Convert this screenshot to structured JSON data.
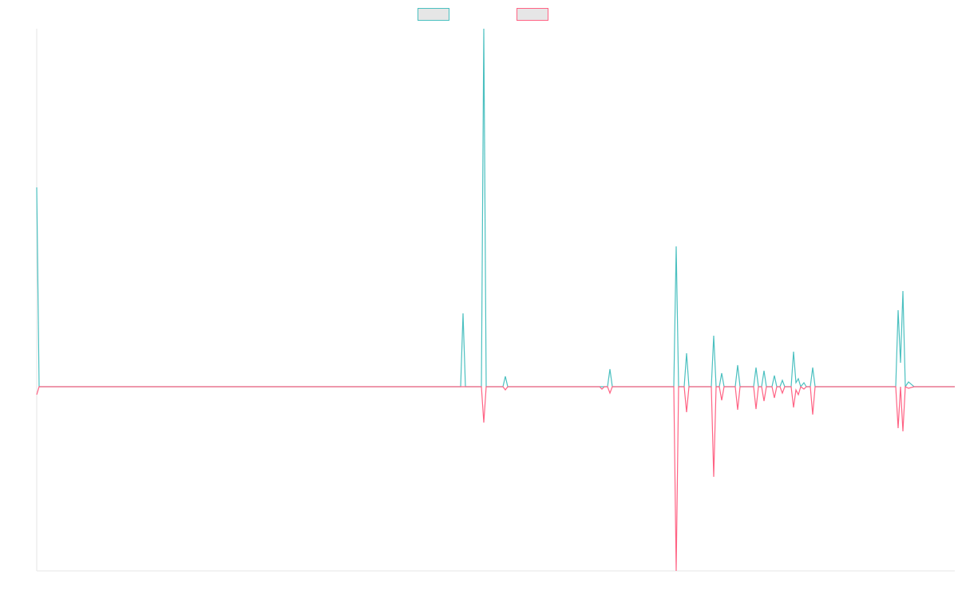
{
  "chart_data": {
    "type": "line",
    "legend": "top",
    "grid": false,
    "xlim": [
      0,
      1150
    ],
    "ylim": [
      -231,
      449
    ],
    "series": [
      {
        "color": "#4bc0c0",
        "x": [
          0,
          3,
          531,
          534,
          537,
          557,
          560,
          563,
          584,
          587,
          590,
          715,
          718,
          721,
          798,
          801,
          804,
          811,
          814,
          817,
          845,
          848,
          851,
          855,
          858,
          861,
          875,
          878,
          881,
          898,
          901,
          904,
          908,
          911,
          914,
          921,
          924,
          927,
          931,
          934,
          937,
          945,
          948,
          951,
          954,
          957,
          961,
          964,
          969,
          972,
          975,
          1076,
          1079,
          1082,
          1085,
          1088,
          1092,
          1099,
          1150
        ],
        "values": [
          250,
          0,
          0,
          92,
          0,
          0,
          449,
          0,
          0,
          13,
          0,
          0,
          22,
          0,
          0,
          176,
          0,
          0,
          42,
          0,
          0,
          64,
          0,
          0,
          17,
          0,
          0,
          27,
          0,
          0,
          24,
          0,
          0,
          20,
          0,
          0,
          14,
          0,
          0,
          8,
          0,
          0,
          44,
          5,
          10,
          0,
          5,
          0,
          0,
          24,
          0,
          0,
          96,
          30,
          120,
          0,
          6,
          0,
          0
        ]
      },
      {
        "color": "#ff6384",
        "x": [
          0,
          3,
          557,
          560,
          563,
          584,
          587,
          590,
          705,
          708,
          711,
          715,
          718,
          721,
          798,
          801,
          804,
          811,
          814,
          817,
          845,
          848,
          851,
          855,
          858,
          861,
          875,
          878,
          881,
          898,
          901,
          904,
          908,
          911,
          914,
          921,
          924,
          927,
          931,
          934,
          937,
          945,
          948,
          951,
          954,
          957,
          961,
          964,
          969,
          972,
          975,
          1076,
          1079,
          1082,
          1085,
          1088,
          1092,
          1099,
          1150
        ],
        "values": [
          -10,
          0,
          0,
          -45,
          0,
          0,
          -4,
          0,
          0,
          -3,
          0,
          0,
          -8,
          0,
          0,
          -231,
          0,
          0,
          -32,
          0,
          0,
          -113,
          0,
          0,
          -17,
          0,
          0,
          -29,
          0,
          0,
          -28,
          0,
          0,
          -18,
          0,
          0,
          -14,
          0,
          0,
          -8,
          0,
          0,
          -26,
          -4,
          -10,
          0,
          -3,
          0,
          0,
          -35,
          0,
          0,
          -52,
          0,
          -56,
          0,
          -2,
          0,
          0
        ]
      }
    ]
  }
}
